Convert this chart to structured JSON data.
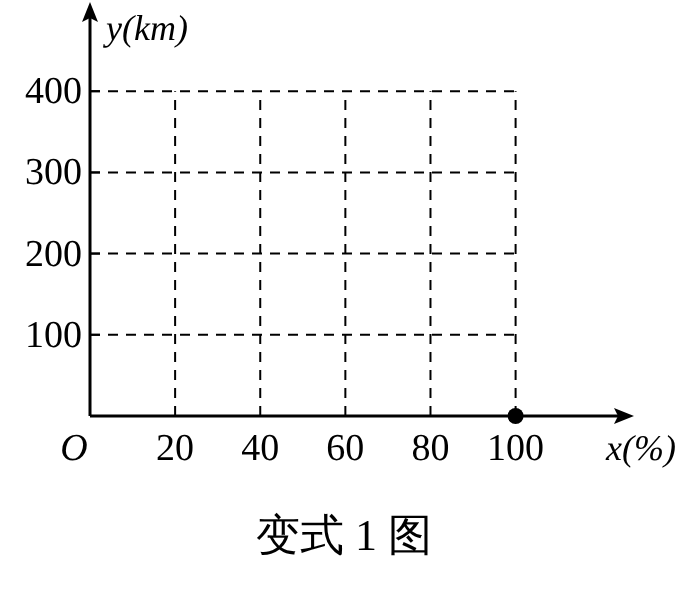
{
  "chart_data": {
    "type": "scatter",
    "xlabel": "x(%)",
    "ylabel": "y(km)",
    "xlim": [
      0,
      125
    ],
    "ylim": [
      0,
      500
    ],
    "xticks": [
      {
        "value": 0,
        "label": "O"
      },
      20,
      40,
      60,
      80,
      100
    ],
    "yticks": [
      100,
      200,
      300,
      400
    ],
    "grid": true,
    "marker": "circle",
    "series": [
      {
        "color": "#000000",
        "x": [
          100
        ],
        "values": [
          0
        ]
      }
    ],
    "annotations": [
      "变式 1 图"
    ]
  }
}
